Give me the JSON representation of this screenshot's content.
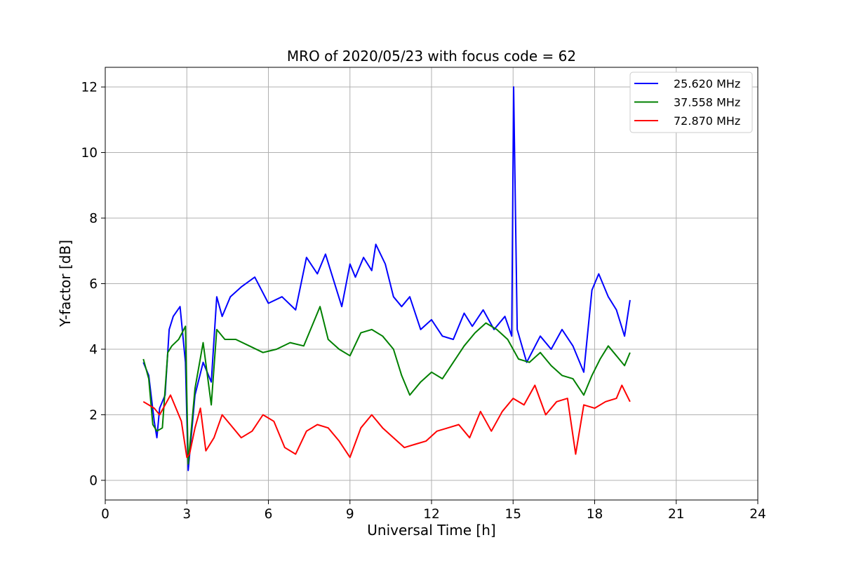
{
  "chart_data": {
    "type": "line",
    "title": "MRO of 2020/05/23 with focus code = 62",
    "xlabel": "Universal Time [h]",
    "ylabel": "Y-factor [dB]",
    "xlim": [
      0,
      24
    ],
    "ylim": [
      -0.6,
      12.6
    ],
    "xticks": [
      0,
      3,
      6,
      9,
      12,
      15,
      18,
      21,
      24
    ],
    "yticks": [
      0,
      2,
      4,
      6,
      8,
      10,
      12
    ],
    "grid": true,
    "legend_position": "top-right",
    "series": [
      {
        "name": "25.620 MHz",
        "color": "#0000ff",
        "x": [
          1.4,
          1.6,
          1.8,
          1.9,
          2.0,
          2.2,
          2.35,
          2.5,
          2.75,
          2.95,
          3.05,
          3.3,
          3.6,
          3.9,
          4.1,
          4.3,
          4.6,
          5.0,
          5.5,
          6.0,
          6.5,
          7.0,
          7.4,
          7.8,
          8.1,
          8.4,
          8.7,
          9.0,
          9.2,
          9.5,
          9.8,
          9.95,
          10.3,
          10.6,
          10.9,
          11.2,
          11.6,
          12.0,
          12.4,
          12.8,
          13.2,
          13.5,
          13.9,
          14.3,
          14.7,
          14.95,
          15.02,
          15.15,
          15.5,
          16.0,
          16.4,
          16.8,
          17.2,
          17.6,
          17.9,
          18.15,
          18.5,
          18.8,
          19.1,
          19.3
        ],
        "values": [
          3.6,
          3.2,
          1.8,
          1.3,
          2.2,
          2.6,
          4.6,
          5.0,
          5.3,
          3.6,
          0.3,
          2.6,
          3.6,
          3.0,
          5.6,
          5.0,
          5.6,
          5.9,
          6.2,
          5.4,
          5.6,
          5.2,
          6.8,
          6.3,
          6.9,
          6.1,
          5.3,
          6.6,
          6.2,
          6.8,
          6.4,
          7.2,
          6.6,
          5.6,
          5.3,
          5.6,
          4.6,
          4.9,
          4.4,
          4.3,
          5.1,
          4.7,
          5.2,
          4.6,
          5.0,
          4.4,
          12.0,
          4.6,
          3.6,
          4.4,
          4.0,
          4.6,
          4.1,
          3.3,
          5.8,
          6.3,
          5.6,
          5.2,
          4.4,
          5.5
        ]
      },
      {
        "name": "37.558 MHz",
        "color": "#008000",
        "x": [
          1.4,
          1.6,
          1.75,
          1.9,
          2.1,
          2.3,
          2.45,
          2.7,
          2.95,
          3.05,
          3.3,
          3.6,
          3.9,
          4.1,
          4.4,
          4.8,
          5.3,
          5.8,
          6.3,
          6.8,
          7.3,
          7.7,
          7.9,
          8.2,
          8.6,
          9.0,
          9.4,
          9.8,
          10.2,
          10.6,
          10.9,
          11.2,
          11.6,
          12.0,
          12.4,
          12.8,
          13.2,
          13.6,
          14.0,
          14.4,
          14.8,
          15.2,
          15.6,
          16.0,
          16.4,
          16.8,
          17.2,
          17.6,
          17.9,
          18.2,
          18.5,
          18.8,
          19.1,
          19.3
        ],
        "values": [
          3.7,
          3.1,
          1.7,
          1.5,
          1.6,
          3.9,
          4.1,
          4.3,
          4.7,
          0.5,
          2.8,
          4.2,
          2.3,
          4.6,
          4.3,
          4.3,
          4.1,
          3.9,
          4.0,
          4.2,
          4.1,
          4.9,
          5.3,
          4.3,
          4.0,
          3.8,
          4.5,
          4.6,
          4.4,
          4.0,
          3.2,
          2.6,
          3.0,
          3.3,
          3.1,
          3.6,
          4.1,
          4.5,
          4.8,
          4.6,
          4.3,
          3.7,
          3.6,
          3.9,
          3.5,
          3.2,
          3.1,
          2.6,
          3.2,
          3.7,
          4.1,
          3.8,
          3.5,
          3.9
        ]
      },
      {
        "name": "72.870 MHz",
        "color": "#ff0000",
        "x": [
          1.4,
          1.6,
          1.8,
          2.0,
          2.2,
          2.4,
          2.6,
          2.8,
          3.0,
          3.1,
          3.3,
          3.5,
          3.7,
          4.0,
          4.3,
          4.6,
          5.0,
          5.4,
          5.8,
          6.2,
          6.6,
          7.0,
          7.4,
          7.8,
          8.2,
          8.6,
          9.0,
          9.4,
          9.8,
          10.2,
          10.6,
          11.0,
          11.4,
          11.8,
          12.2,
          12.6,
          13.0,
          13.4,
          13.8,
          14.2,
          14.6,
          15.0,
          15.4,
          15.8,
          16.2,
          16.6,
          17.0,
          17.3,
          17.6,
          18.0,
          18.4,
          18.8,
          19.0,
          19.3
        ],
        "values": [
          2.4,
          2.3,
          2.2,
          2.0,
          2.3,
          2.6,
          2.2,
          1.8,
          0.7,
          0.8,
          1.6,
          2.2,
          0.9,
          1.3,
          2.0,
          1.7,
          1.3,
          1.5,
          2.0,
          1.8,
          1.0,
          0.8,
          1.5,
          1.7,
          1.6,
          1.2,
          0.7,
          1.6,
          2.0,
          1.6,
          1.3,
          1.0,
          1.1,
          1.2,
          1.5,
          1.6,
          1.7,
          1.3,
          2.1,
          1.5,
          2.1,
          2.5,
          2.3,
          2.9,
          2.0,
          2.4,
          2.5,
          0.8,
          2.3,
          2.2,
          2.4,
          2.5,
          2.9,
          2.4
        ]
      }
    ]
  }
}
